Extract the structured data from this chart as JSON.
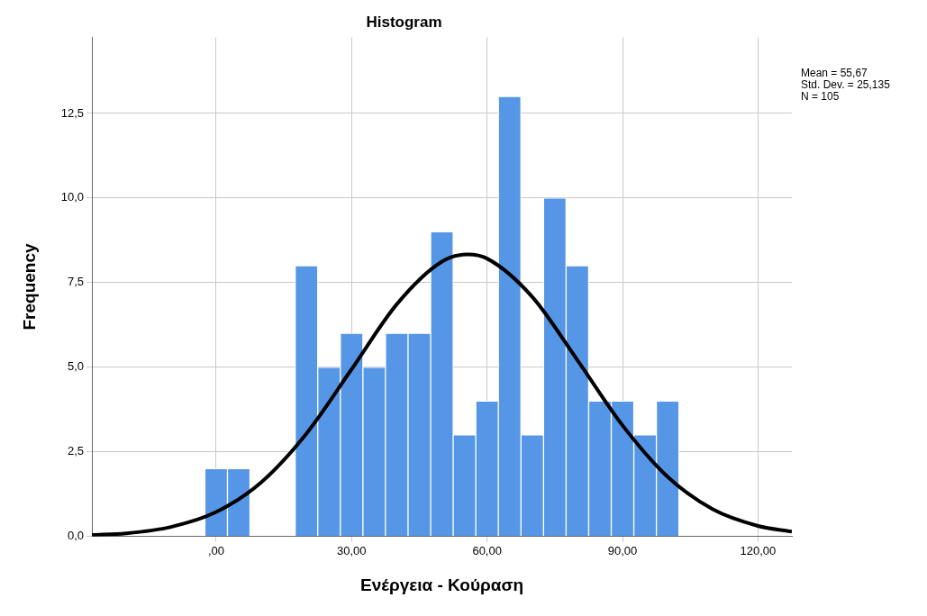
{
  "chart_data": {
    "type": "histogram",
    "title": "Histogram",
    "xlabel": "Ενέργεια - Κούραση",
    "ylabel": "Frequency",
    "bins": [
      -2.5,
      2.5,
      7.5,
      12.5,
      17.5,
      22.5,
      27.5,
      32.5,
      37.5,
      42.5,
      47.5,
      52.5,
      57.5,
      62.5,
      67.5,
      72.5,
      77.5,
      82.5,
      87.5,
      92.5,
      97.5,
      102.5
    ],
    "values": [
      2,
      2,
      0,
      0,
      8,
      5,
      6,
      5,
      6,
      6,
      9,
      3,
      4,
      13,
      3,
      10,
      8,
      4,
      4,
      3,
      4
    ],
    "color": "#5596e6",
    "series": [
      {
        "type": "line",
        "color": "#000000",
        "x": [
          -27.5,
          -20,
          -10,
          0,
          10,
          20,
          30,
          40,
          50,
          55.67,
          60,
          70,
          80,
          90,
          100,
          110,
          120,
          127.5
        ],
        "values": [
          0.04,
          0.09,
          0.28,
          0.72,
          1.6,
          3.04,
          4.94,
          6.86,
          8.12,
          8.33,
          8.21,
          7.08,
          5.21,
          3.28,
          1.76,
          0.8,
          0.31,
          0.14
        ]
      }
    ],
    "xlim": [
      -27.5,
      127.5
    ],
    "ylim": [
      0,
      14.75
    ],
    "xticks": [
      {
        "value": 0,
        "label": ",00"
      },
      {
        "value": 30,
        "label": "30,00"
      },
      {
        "value": 60,
        "label": "60,00"
      },
      {
        "value": 90,
        "label": "90,00"
      },
      {
        "value": 120,
        "label": "120,00"
      }
    ],
    "yticks": [
      {
        "value": 0,
        "label": "0,0"
      },
      {
        "value": 2.5,
        "label": "2,5"
      },
      {
        "value": 5,
        "label": "5,0"
      },
      {
        "value": 7.5,
        "label": "7,5"
      },
      {
        "value": 10,
        "label": "10,0"
      },
      {
        "value": 12.5,
        "label": "12,5"
      }
    ],
    "grid": true,
    "legend": false,
    "annotations": [
      "Mean = 55,67",
      "Std. Dev. = 25,135",
      "N = 105"
    ]
  }
}
